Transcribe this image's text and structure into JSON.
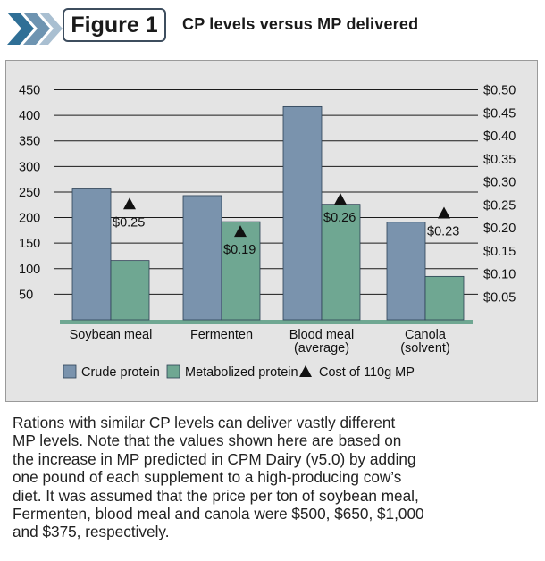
{
  "header": {
    "figure_label": "Figure 1",
    "title": "CP levels versus MP delivered"
  },
  "chart_data": {
    "type": "bar",
    "categories": [
      {
        "lines": [
          "Soybean meal"
        ]
      },
      {
        "lines": [
          "Fermenten"
        ]
      },
      {
        "lines": [
          "Blood meal",
          "(average)"
        ]
      },
      {
        "lines": [
          "Canola",
          "(solvent)"
        ]
      }
    ],
    "series": [
      {
        "name": "Crude protein",
        "color": "#7a93ad",
        "values": [
          256,
          243,
          417,
          191
        ]
      },
      {
        "name": "Metabolized protein",
        "color": "#6fa792",
        "values": [
          116,
          192,
          226,
          85
        ]
      }
    ],
    "cost_series": {
      "name": "Cost of 110g MP",
      "values": [
        0.25,
        0.19,
        0.26,
        0.23
      ],
      "labels": [
        "$0.25",
        "$0.19",
        "$0.26",
        "$0.23"
      ],
      "color": "#111111"
    },
    "y_left": {
      "min": 0,
      "max": 450,
      "ticks": [
        50,
        100,
        150,
        200,
        250,
        300,
        350,
        400,
        450
      ]
    },
    "y_right": {
      "min": 0,
      "max": 0.5,
      "ticks": [
        0.05,
        0.1,
        0.15,
        0.2,
        0.25,
        0.3,
        0.35,
        0.4,
        0.45,
        0.5
      ],
      "tick_labels": [
        "$0.05",
        "$0.10",
        "$0.15",
        "$0.20",
        "$0.25",
        "$0.30",
        "$0.35",
        "$0.40",
        "$0.45",
        "$0.50"
      ]
    },
    "grid": true,
    "legend_position": "bottom"
  },
  "caption": {
    "lines": [
      "Rations with similar CP levels can deliver vastly different",
      "MP levels. Note that the values shown here are based on",
      "the increase in MP predicted in CPM Dairy (v5.0) by adding",
      "one pound of each supplement to a high-producing cow’s",
      "diet. It was assumed that the price per ton of soybean meal,",
      "Fermenten, blood meal and canola were $500, $650, $1,000",
      "and $375, respectively."
    ]
  }
}
